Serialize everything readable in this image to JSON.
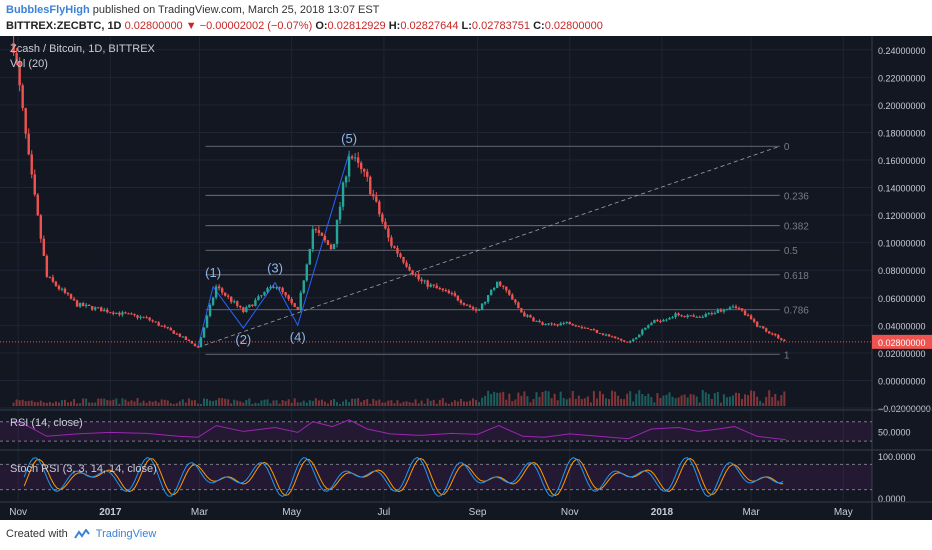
{
  "header": {
    "author": "BubblesFlyHigh",
    "published_text": "published on TradingView.com, March 25, 2018 13:07 EST",
    "symbol": "BITTREX:ZECBTC, 1D",
    "last": "0.02800000",
    "change": "−0.00002002 (−0.07%)",
    "open_label": "O:",
    "open": "0.02812929",
    "high_label": "H:",
    "high": "0.02827644",
    "low_label": "L:",
    "low": "0.02783751",
    "close_label": "C:",
    "close": "0.02800000"
  },
  "footer": {
    "created_with": "Created with",
    "brand": "TradingView"
  },
  "colors": {
    "background": "#131722",
    "up": "#26a69a",
    "down": "#ef5350",
    "rsi": "#9c27b0",
    "stoch_k": "#2196f3",
    "stoch_d": "#ff9800",
    "price_tag": "#ef5350"
  },
  "chart_data": {
    "type": "candlestick",
    "title": "Zcash / Bitcoin, 1D, BITTREX",
    "volume_label": "Vol (20)",
    "x_ticks": [
      "Nov",
      "2017",
      "Mar",
      "May",
      "Jul",
      "Sep",
      "Nov",
      "2018",
      "Mar",
      "May"
    ],
    "y_ticks": [
      "0.24000000",
      "0.22000000",
      "0.20000000",
      "0.18000000",
      "0.16000000",
      "0.14000000",
      "0.12000000",
      "0.10000000",
      "0.08000000",
      "0.06000000",
      "0.04000000",
      "0.02000000",
      "0.00000000",
      "−0.02000000"
    ],
    "ylim": [
      -0.02,
      0.25
    ],
    "current_price": "0.02800000",
    "price_path": {
      "x": [
        "2016-10-29",
        "2016-11-08",
        "2016-11-20",
        "2016-12-10",
        "2017-01-01",
        "2017-01-25",
        "2017-02-15",
        "2017-02-28",
        "2017-03-12",
        "2017-03-30",
        "2017-04-20",
        "2017-05-05",
        "2017-05-15",
        "2017-05-28",
        "2017-06-08",
        "2017-06-20",
        "2017-07-05",
        "2017-07-25",
        "2017-08-15",
        "2017-09-01",
        "2017-09-15",
        "2017-10-01",
        "2017-10-15",
        "2017-11-01",
        "2017-11-20",
        "2017-12-10",
        "2017-12-25",
        "2018-01-12",
        "2018-01-25",
        "2018-02-05",
        "2018-02-18",
        "2018-03-05",
        "2018-03-24"
      ],
      "y": [
        0.245,
        0.16,
        0.075,
        0.055,
        0.05,
        0.045,
        0.033,
        0.024,
        0.068,
        0.05,
        0.07,
        0.05,
        0.11,
        0.095,
        0.165,
        0.145,
        0.1,
        0.072,
        0.062,
        0.05,
        0.072,
        0.048,
        0.04,
        0.042,
        0.035,
        0.027,
        0.042,
        0.048,
        0.045,
        0.05,
        0.055,
        0.04,
        0.028
      ]
    },
    "elliott_labels": [
      {
        "label": "(1)",
        "x": "2017-03-10",
        "y": 0.068
      },
      {
        "label": "(2)",
        "x": "2017-03-30",
        "y": 0.038
      },
      {
        "label": "(3)",
        "x": "2017-04-20",
        "y": 0.071
      },
      {
        "label": "(4)",
        "x": "2017-05-05",
        "y": 0.04
      },
      {
        "label": "(5)",
        "x": "2017-06-08",
        "y": 0.165
      }
    ],
    "fibonacci": {
      "levels": [
        "0",
        "0.236",
        "0.382",
        "0.5",
        "0.618",
        "0.786",
        "1"
      ],
      "low": 0.019,
      "high": 0.17
    },
    "rsi": {
      "label": "RSI (14, close)",
      "ticks": [
        "50.0000"
      ],
      "bands": [
        70,
        30
      ],
      "values": [
        72,
        60,
        40,
        45,
        48,
        46,
        40,
        38,
        62,
        50,
        58,
        48,
        70,
        60,
        74,
        55,
        45,
        42,
        46,
        44,
        62,
        40,
        38,
        45,
        40,
        35,
        55,
        58,
        50,
        54,
        60,
        40,
        33
      ]
    },
    "stoch_rsi": {
      "label": "Stoch RSI (3, 3, 14, 14, close)",
      "ticks": [
        "100.0000",
        "0.0000"
      ],
      "bands": [
        80,
        20
      ]
    }
  }
}
